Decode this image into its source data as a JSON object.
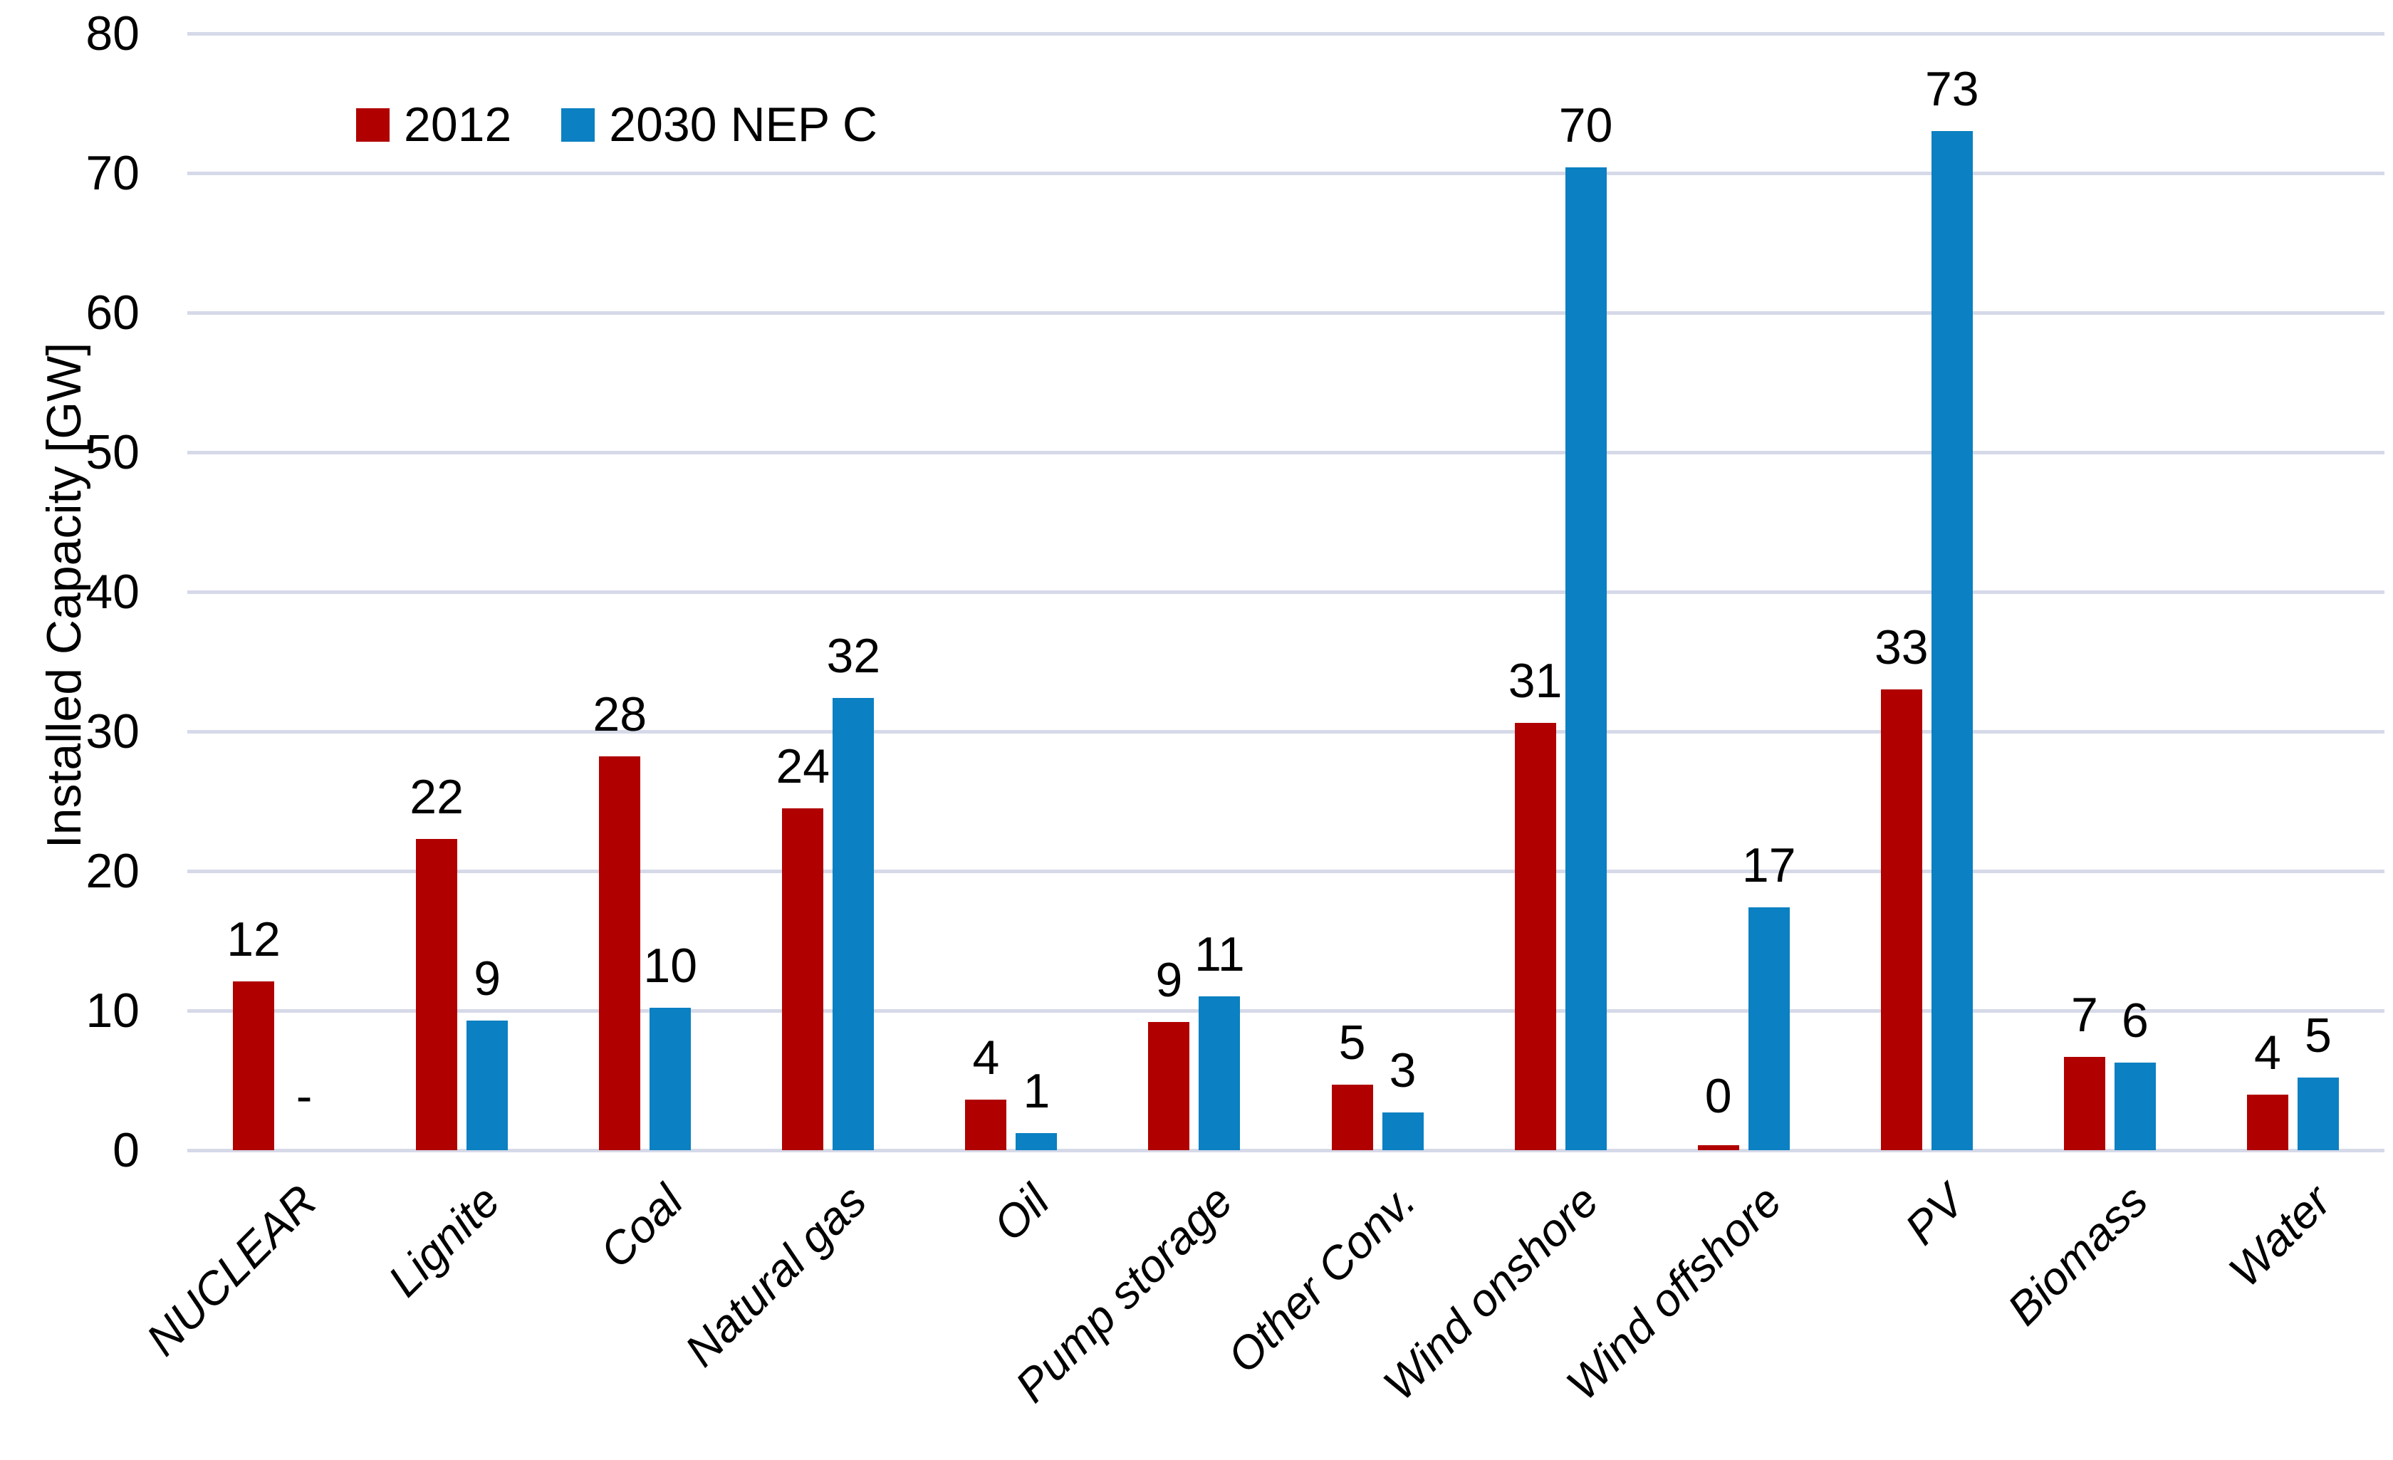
{
  "chart_data": {
    "type": "bar",
    "title": "",
    "xlabel": "",
    "ylabel": "Installed Capacity [GW]",
    "ylim": [
      0,
      80
    ],
    "yticks": [
      0,
      10,
      20,
      30,
      40,
      50,
      60,
      70,
      80
    ],
    "grid": true,
    "legend_position": "top-left-inside",
    "categories": [
      "NUCLEAR",
      "Lignite",
      "Coal",
      "Natural gas",
      "Oil",
      "Pump storage",
      "Other Conv.",
      "Wind onshore",
      "Wind offshore",
      "PV",
      "Biomass",
      "Water"
    ],
    "series": [
      {
        "name": "2012",
        "color": "#b00000",
        "values": [
          12,
          22,
          28,
          24,
          4,
          9,
          5,
          31,
          0,
          33,
          7,
          4
        ],
        "bar_heights_gw": [
          12.1,
          22.3,
          28.2,
          24.5,
          3.6,
          9.2,
          4.7,
          30.6,
          0.35,
          33.0,
          6.7,
          4.0
        ],
        "data_labels": [
          "12",
          "22",
          "28",
          "24",
          "4",
          "9",
          "5",
          "31",
          "0",
          "33",
          "7",
          "4"
        ]
      },
      {
        "name": "2030 NEP C",
        "color": "#0b80c2",
        "values": [
          null,
          9,
          10,
          32,
          1,
          11,
          3,
          70,
          17,
          73,
          6,
          5
        ],
        "bar_heights_gw": [
          null,
          9.3,
          10.2,
          32.4,
          1.2,
          11.0,
          2.7,
          70.4,
          17.4,
          73.0,
          6.3,
          5.2
        ],
        "data_labels": [
          "-",
          "9",
          "10",
          "32",
          "1",
          "11",
          "3",
          "70",
          "17",
          "73",
          "6",
          "5"
        ]
      }
    ]
  },
  "colors": {
    "background": "#ffffff",
    "gridline": "#d6d9e8",
    "text": "#000000"
  }
}
